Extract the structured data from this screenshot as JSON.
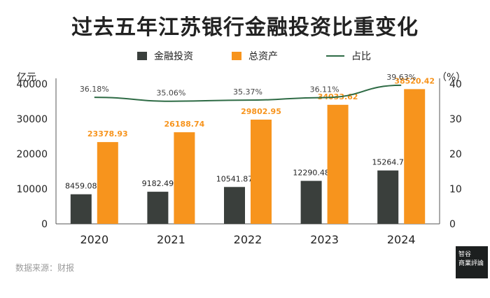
{
  "title": "过去五年江苏银行金融投资比重变化",
  "legend": {
    "bar1": "金融投资",
    "bar2": "总资产",
    "line": "占比"
  },
  "axis": {
    "left_unit": "亿元",
    "right_unit": "（%）"
  },
  "source": "数据来源：财报",
  "logo": {
    "line1": "智谷",
    "line2": "商業評論"
  },
  "colors": {
    "bar1": "#3a3f3c",
    "bar2": "#f7941d",
    "line": "#2e6b45",
    "bar2_label": "#f7941d",
    "bar1_label": "#222222",
    "line_label": "#444444"
  },
  "chart_data": {
    "type": "bar",
    "categories": [
      "2020",
      "2021",
      "2022",
      "2023",
      "2024"
    ],
    "series": [
      {
        "name": "金融投资",
        "type": "bar",
        "axis": "left",
        "values": [
          8459.08,
          9182.49,
          10541.87,
          12290.48,
          15264.7
        ],
        "labels": [
          "8459.08",
          "9182.49",
          "10541.87",
          "12290.48",
          "15264.7"
        ]
      },
      {
        "name": "总资产",
        "type": "bar",
        "axis": "left",
        "values": [
          23378.93,
          26188.74,
          29802.95,
          34033.62,
          38520.42
        ],
        "labels": [
          "23378.93",
          "26188.74",
          "29802.95",
          "34033.62",
          "38520.42"
        ]
      },
      {
        "name": "占比",
        "type": "line",
        "axis": "right",
        "values": [
          36.18,
          35.06,
          35.37,
          36.11,
          39.63
        ],
        "labels": [
          "36.18%",
          "35.06%",
          "35.37%",
          "36.11%",
          "39.63%"
        ]
      }
    ],
    "ylim_left": [
      0,
      40000
    ],
    "yticks_left": [
      "0",
      "10000",
      "20000",
      "30000",
      "40000"
    ],
    "ylim_right": [
      0,
      40
    ],
    "yticks_right": [
      "0",
      "10",
      "20",
      "30",
      "40"
    ],
    "grid": false,
    "legend_position": "top"
  }
}
